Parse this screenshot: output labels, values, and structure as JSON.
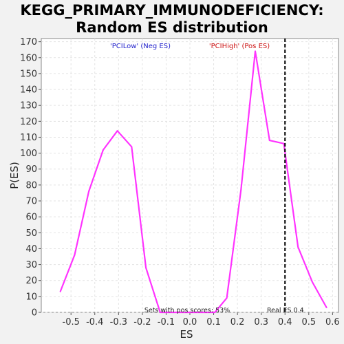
{
  "title_line1": "KEGG_PRIMARY_IMMUNODEFICIENCY:",
  "title_line2": "Random ES distribution",
  "chart_data": {
    "type": "line",
    "title": "KEGG_PRIMARY_IMMUNODEFICIENCY: Random ES distribution",
    "xlabel": "ES",
    "ylabel": "P(ES)",
    "xlim": [
      -0.625,
      0.625
    ],
    "ylim": [
      0,
      172
    ],
    "x_ticks": [
      -0.5,
      -0.4,
      -0.3,
      -0.2,
      -0.1,
      0.0,
      0.1,
      0.2,
      0.3,
      0.4,
      0.5,
      0.6
    ],
    "x_tick_labels": [
      "-0.5",
      "-0.4",
      "-0.3",
      "-0.2",
      "-0.1",
      "0.0",
      "0.1",
      "0.2",
      "0.3",
      "0.4",
      "0.5",
      "0.6"
    ],
    "y_ticks": [
      0,
      10,
      20,
      30,
      40,
      50,
      60,
      70,
      80,
      90,
      100,
      110,
      120,
      130,
      140,
      150,
      160,
      170
    ],
    "grid": true,
    "series": [
      {
        "color": "#ff33ff",
        "x": [
          -0.545,
          -0.485,
          -0.425,
          -0.365,
          -0.305,
          -0.245,
          -0.185,
          -0.125,
          -0.065,
          -0.005,
          0.055,
          0.105,
          0.155,
          0.215,
          0.275,
          0.335,
          0.395,
          0.455,
          0.515,
          0.575
        ],
        "y": [
          13,
          36,
          76,
          102,
          114,
          104,
          28,
          0,
          0,
          0,
          0,
          0,
          9,
          77,
          164,
          108,
          106,
          41,
          19,
          3
        ]
      }
    ],
    "real_es": 0.4,
    "annotations": {
      "neg_label": "'PCILow' (Neg ES)",
      "pos_label": "'PCIHigh' (Pos ES)",
      "pos_scores": "Sets with pos scores: 53%",
      "real_es_label": "Real ES 0.4"
    },
    "colors": {
      "curve": "#ff33ff",
      "neg_label": "#2222cc",
      "pos_label": "#cc1111",
      "real_es_line": "#000000"
    }
  }
}
